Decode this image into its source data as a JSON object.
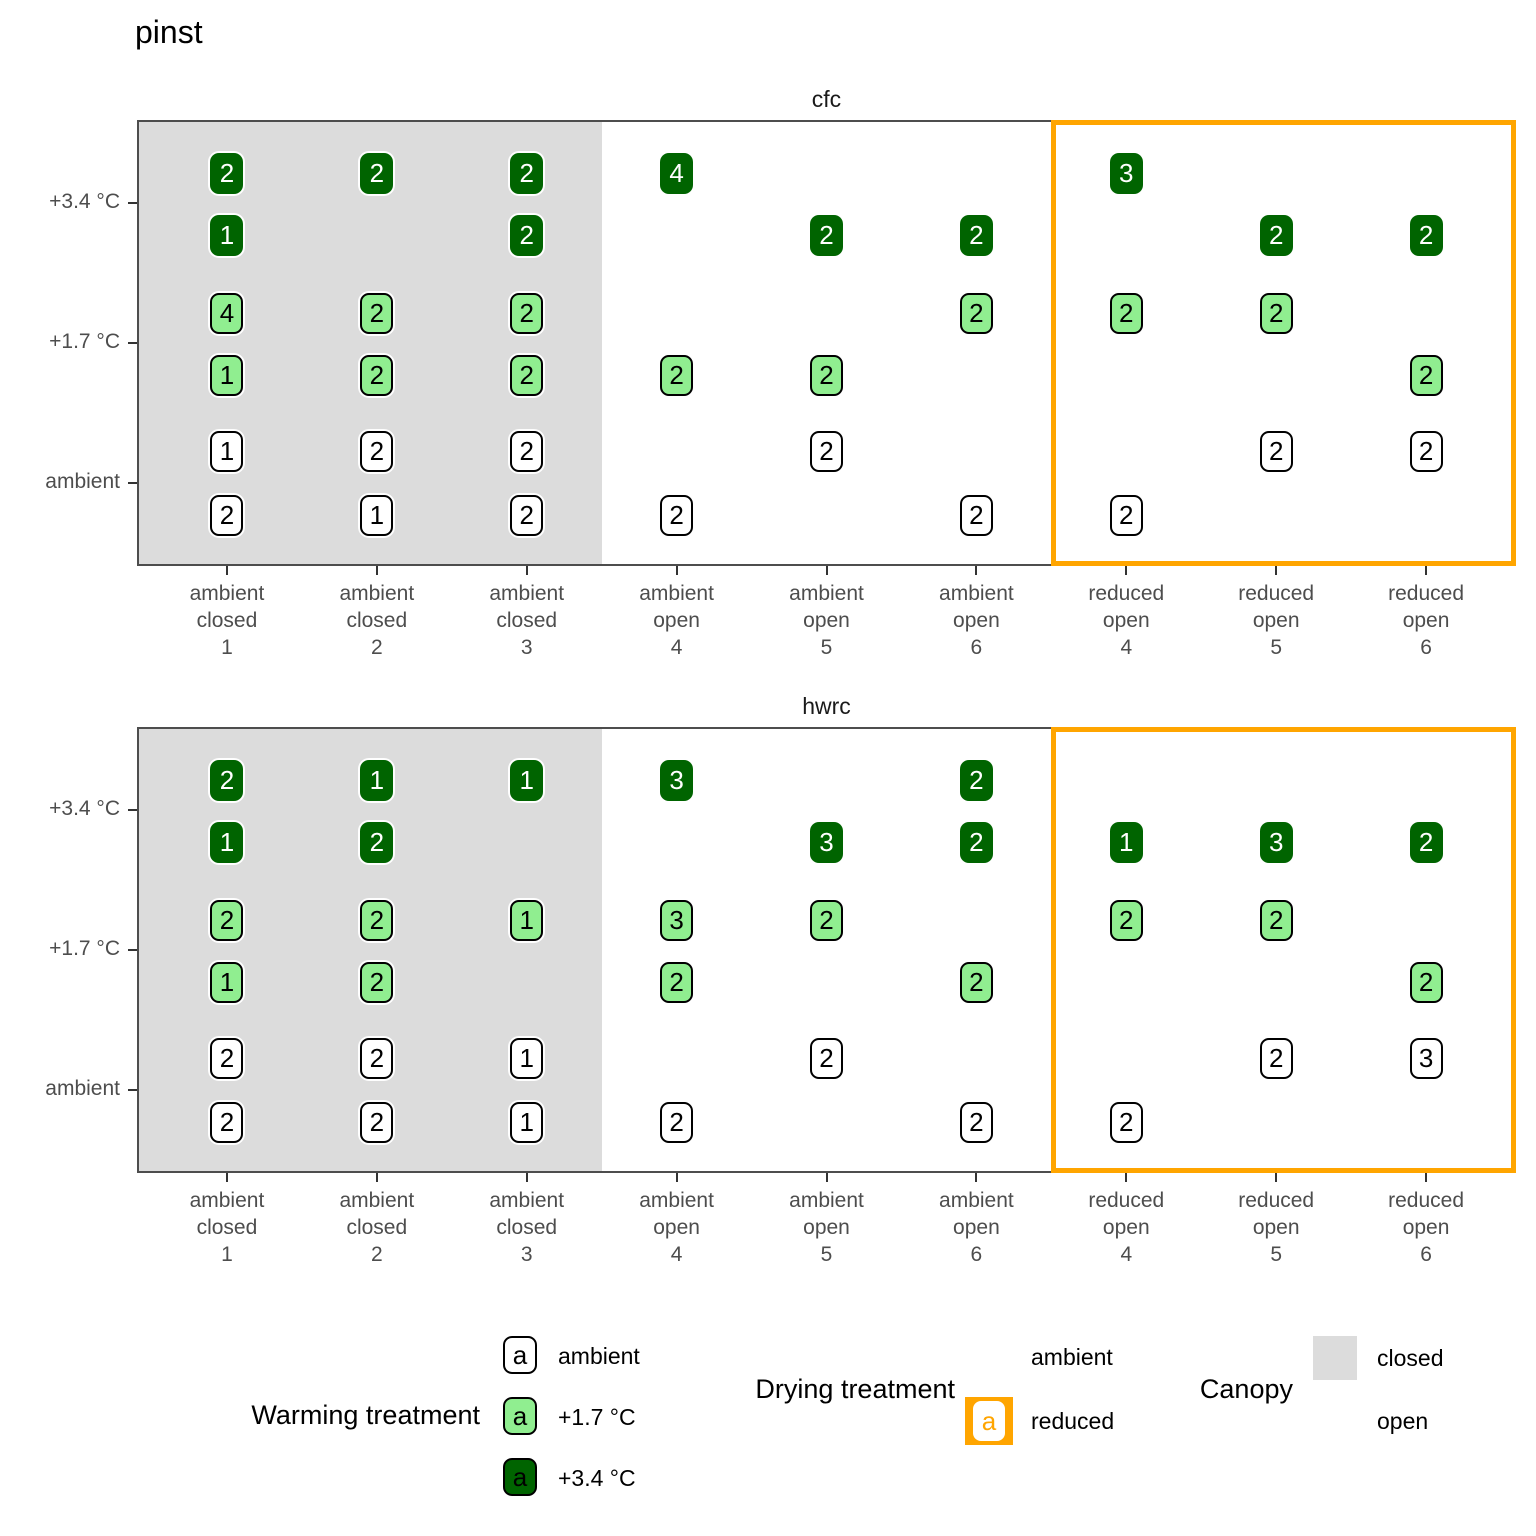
{
  "title": "pinst",
  "colors": {
    "warming-ambient": "#FFFFFF",
    "warming-plus17": "#90EE90",
    "warming-plus34": "#006400",
    "canopy-closed": "#DCDCDC",
    "drying-reduced": "#FFA500",
    "axis-text": "#4D4D4D",
    "panel-border": "#4D4D4D"
  },
  "chart_data": {
    "type": "scatter",
    "title": "pinst",
    "marker": "labelled-count-box",
    "x_categories": [
      [
        "ambient",
        "closed",
        "1"
      ],
      [
        "ambient",
        "closed",
        "2"
      ],
      [
        "ambient",
        "closed",
        "3"
      ],
      [
        "ambient",
        "open",
        "4"
      ],
      [
        "ambient",
        "open",
        "5"
      ],
      [
        "ambient",
        "open",
        "6"
      ],
      [
        "reduced",
        "open",
        "4"
      ],
      [
        "reduced",
        "open",
        "5"
      ],
      [
        "reduced",
        "open",
        "6"
      ]
    ],
    "y_tick_labels": [
      "+3.4 °C",
      "+1.7 °C",
      "ambient"
    ],
    "rows_warming": [
      "+3.4 °C",
      "+3.4 °C",
      "+1.7 °C",
      "+1.7 °C",
      "ambient",
      "ambient"
    ],
    "regions": {
      "canopy_closed_cols": [
        1,
        2,
        3
      ],
      "drying_reduced_cols": [
        7,
        8,
        9
      ]
    },
    "facets": [
      {
        "label": "cfc",
        "points": [
          {
            "col": 1,
            "row": 1,
            "value": 2
          },
          {
            "col": 2,
            "row": 1,
            "value": 2
          },
          {
            "col": 3,
            "row": 1,
            "value": 2
          },
          {
            "col": 4,
            "row": 1,
            "value": 4
          },
          {
            "col": 7,
            "row": 1,
            "value": 3
          },
          {
            "col": 1,
            "row": 2,
            "value": 1
          },
          {
            "col": 3,
            "row": 2,
            "value": 2
          },
          {
            "col": 5,
            "row": 2,
            "value": 2
          },
          {
            "col": 6,
            "row": 2,
            "value": 2
          },
          {
            "col": 8,
            "row": 2,
            "value": 2
          },
          {
            "col": 9,
            "row": 2,
            "value": 2
          },
          {
            "col": 1,
            "row": 3,
            "value": 4
          },
          {
            "col": 2,
            "row": 3,
            "value": 2
          },
          {
            "col": 3,
            "row": 3,
            "value": 2
          },
          {
            "col": 6,
            "row": 3,
            "value": 2
          },
          {
            "col": 7,
            "row": 3,
            "value": 2
          },
          {
            "col": 8,
            "row": 3,
            "value": 2
          },
          {
            "col": 1,
            "row": 4,
            "value": 1
          },
          {
            "col": 2,
            "row": 4,
            "value": 2
          },
          {
            "col": 3,
            "row": 4,
            "value": 2
          },
          {
            "col": 4,
            "row": 4,
            "value": 2
          },
          {
            "col": 5,
            "row": 4,
            "value": 2
          },
          {
            "col": 9,
            "row": 4,
            "value": 2
          },
          {
            "col": 1,
            "row": 5,
            "value": 1
          },
          {
            "col": 2,
            "row": 5,
            "value": 2
          },
          {
            "col": 3,
            "row": 5,
            "value": 2
          },
          {
            "col": 5,
            "row": 5,
            "value": 2
          },
          {
            "col": 8,
            "row": 5,
            "value": 2
          },
          {
            "col": 9,
            "row": 5,
            "value": 2
          },
          {
            "col": 1,
            "row": 6,
            "value": 2
          },
          {
            "col": 2,
            "row": 6,
            "value": 1
          },
          {
            "col": 3,
            "row": 6,
            "value": 2
          },
          {
            "col": 4,
            "row": 6,
            "value": 2
          },
          {
            "col": 6,
            "row": 6,
            "value": 2
          },
          {
            "col": 7,
            "row": 6,
            "value": 2
          }
        ]
      },
      {
        "label": "hwrc",
        "points": [
          {
            "col": 1,
            "row": 1,
            "value": 2
          },
          {
            "col": 2,
            "row": 1,
            "value": 1
          },
          {
            "col": 3,
            "row": 1,
            "value": 1
          },
          {
            "col": 4,
            "row": 1,
            "value": 3
          },
          {
            "col": 6,
            "row": 1,
            "value": 2
          },
          {
            "col": 1,
            "row": 2,
            "value": 1
          },
          {
            "col": 2,
            "row": 2,
            "value": 2
          },
          {
            "col": 5,
            "row": 2,
            "value": 3
          },
          {
            "col": 6,
            "row": 2,
            "value": 2
          },
          {
            "col": 7,
            "row": 2,
            "value": 1
          },
          {
            "col": 8,
            "row": 2,
            "value": 3
          },
          {
            "col": 9,
            "row": 2,
            "value": 2
          },
          {
            "col": 1,
            "row": 3,
            "value": 2
          },
          {
            "col": 2,
            "row": 3,
            "value": 2
          },
          {
            "col": 3,
            "row": 3,
            "value": 1
          },
          {
            "col": 4,
            "row": 3,
            "value": 3
          },
          {
            "col": 5,
            "row": 3,
            "value": 2
          },
          {
            "col": 7,
            "row": 3,
            "value": 2
          },
          {
            "col": 8,
            "row": 3,
            "value": 2
          },
          {
            "col": 1,
            "row": 4,
            "value": 1
          },
          {
            "col": 2,
            "row": 4,
            "value": 2
          },
          {
            "col": 4,
            "row": 4,
            "value": 2
          },
          {
            "col": 6,
            "row": 4,
            "value": 2
          },
          {
            "col": 9,
            "row": 4,
            "value": 2
          },
          {
            "col": 1,
            "row": 5,
            "value": 2
          },
          {
            "col": 2,
            "row": 5,
            "value": 2
          },
          {
            "col": 3,
            "row": 5,
            "value": 1
          },
          {
            "col": 5,
            "row": 5,
            "value": 2
          },
          {
            "col": 8,
            "row": 5,
            "value": 2
          },
          {
            "col": 9,
            "row": 5,
            "value": 3
          },
          {
            "col": 1,
            "row": 6,
            "value": 2
          },
          {
            "col": 2,
            "row": 6,
            "value": 2
          },
          {
            "col": 3,
            "row": 6,
            "value": 1
          },
          {
            "col": 4,
            "row": 6,
            "value": 2
          },
          {
            "col": 6,
            "row": 6,
            "value": 2
          },
          {
            "col": 7,
            "row": 6,
            "value": 2
          }
        ]
      }
    ],
    "legend": {
      "key_letter": "a",
      "warming": {
        "title": "Warming treatment",
        "items": [
          {
            "label": "ambient",
            "color_key": "warming-ambient"
          },
          {
            "label": "+1.7 °C",
            "color_key": "warming-plus17"
          },
          {
            "label": "+3.4 °C",
            "color_key": "warming-plus34"
          }
        ]
      },
      "drying": {
        "title": "Drying treatment",
        "items": [
          {
            "label": "ambient"
          },
          {
            "label": "reduced",
            "color_key": "drying-reduced"
          }
        ]
      },
      "canopy": {
        "title": "Canopy",
        "items": [
          {
            "label": "closed",
            "color_key": "canopy-closed"
          },
          {
            "label": "open"
          }
        ]
      }
    }
  }
}
